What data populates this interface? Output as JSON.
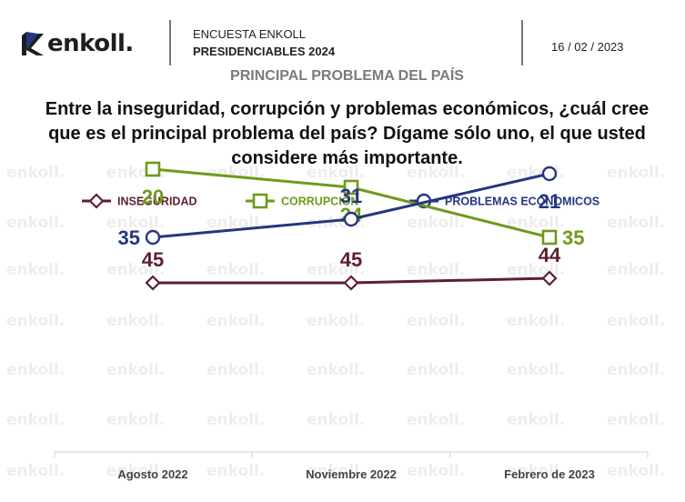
{
  "header": {
    "brand": "enkoll.",
    "survey_line1": "ENCUESTA ENKOLL",
    "survey_line2": "PRESIDENCIABLES 2024",
    "date": "16 / 02 / 2023"
  },
  "section_title": "PRINCIPAL PROBLEMA DEL PAÍS",
  "question": {
    "line1": "Entre la inseguridad, corrupción y problemas económicos, ¿cuál cree",
    "line2": "que es el principal problema del país? Dígame sólo uno, el que usted",
    "line3": "considere más importante."
  },
  "watermark_text": "enkoll.",
  "colors": {
    "inseguridad": "#5e1f2e",
    "corrupcion": "#6f9a1a",
    "economicos": "#26367f"
  },
  "chart_data": {
    "type": "line",
    "categories": [
      "Agosto 2022",
      "Noviembre 2022",
      "Febrero de 2023"
    ],
    "series": [
      {
        "name": "INSEGURIDAD",
        "values": [
          45,
          45,
          44
        ],
        "marker": "diamond",
        "color": "#5e1f2e",
        "label_pos": [
          "above",
          "above",
          "above"
        ]
      },
      {
        "name": "CORRUPCIÓN",
        "values": [
          20,
          24,
          35
        ],
        "marker": "square",
        "color": "#6f9a1a",
        "label_pos": [
          "below",
          "below",
          "right"
        ]
      },
      {
        "name": "PROBLEMAS ECONOMICOS",
        "values": [
          35,
          31,
          21
        ],
        "marker": "circle",
        "color": "#26367f",
        "label_pos": [
          "left",
          "above",
          "below"
        ]
      }
    ],
    "legend_position": "top",
    "grid": false
  }
}
